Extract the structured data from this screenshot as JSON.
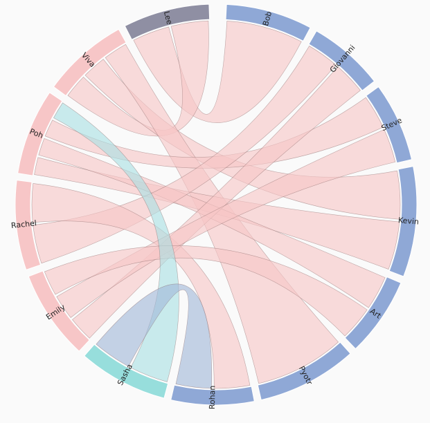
{
  "diagram": {
    "type": "chord",
    "colors": {
      "blue": "#8fa8d6",
      "pink": "#f7c6c7",
      "teal": "#97dedc",
      "grey": "#8f8fa3",
      "ribbon_pink": "#f7c6c7",
      "ribbon_teal": "#a9e1e3",
      "ribbon_blue": "#a2b8d8"
    },
    "groups": [
      {
        "name": "Bob",
        "color": "blue",
        "start": 3,
        "end": 28
      },
      {
        "name": "Giovanni",
        "color": "blue",
        "start": 30,
        "end": 52
      },
      {
        "name": "Steve",
        "color": "blue",
        "start": 54,
        "end": 77
      },
      {
        "name": "Kevin",
        "color": "blue",
        "start": 79,
        "end": 111
      },
      {
        "name": "Art",
        "color": "blue",
        "start": 113,
        "end": 136
      },
      {
        "name": "Pyotr",
        "color": "blue",
        "start": 138,
        "end": 167
      },
      {
        "name": "Rohan",
        "color": "blue",
        "start": 169,
        "end": 193
      },
      {
        "name": "Sasha",
        "color": "teal",
        "start": 195,
        "end": 221
      },
      {
        "name": "Emily",
        "color": "pink",
        "start": 223,
        "end": 249
      },
      {
        "name": "Rachel",
        "color": "pink",
        "start": 251,
        "end": 277
      },
      {
        "name": "Poh",
        "color": "pink",
        "start": 279,
        "end": 304
      },
      {
        "name": "Viva",
        "color": "pink",
        "start": 306,
        "end": 331
      },
      {
        "name": "Lee",
        "color": "grey",
        "start": 333,
        "end": 358
      }
    ],
    "chords": [
      {
        "source": "Lee",
        "target": "Bob",
        "color": "ribbon_pink"
      },
      {
        "source": "Viva",
        "target": "Lee",
        "color": "ribbon_pink"
      },
      {
        "source": "Viva",
        "target": "Kevin",
        "color": "ribbon_pink"
      },
      {
        "source": "Viva",
        "target": "Pyotr",
        "color": "ribbon_pink"
      },
      {
        "source": "Poh",
        "target": "Kevin",
        "color": "ribbon_pink"
      },
      {
        "source": "Poh",
        "target": "Art",
        "color": "ribbon_pink"
      },
      {
        "source": "Poh",
        "target": "Steve",
        "color": "ribbon_pink"
      },
      {
        "source": "Rachel",
        "target": "Giovanni",
        "color": "ribbon_pink"
      },
      {
        "source": "Rachel",
        "target": "Rohan",
        "color": "ribbon_pink"
      },
      {
        "source": "Emily",
        "target": "Giovanni",
        "color": "ribbon_pink"
      },
      {
        "source": "Emily",
        "target": "Steve",
        "color": "ribbon_pink"
      },
      {
        "source": "Emily",
        "target": "Art",
        "color": "ribbon_pink"
      },
      {
        "source": "Poh",
        "target": "Sasha",
        "color": "ribbon_teal"
      },
      {
        "source": "Sasha",
        "target": "Rohan",
        "color": "ribbon_blue"
      }
    ]
  }
}
